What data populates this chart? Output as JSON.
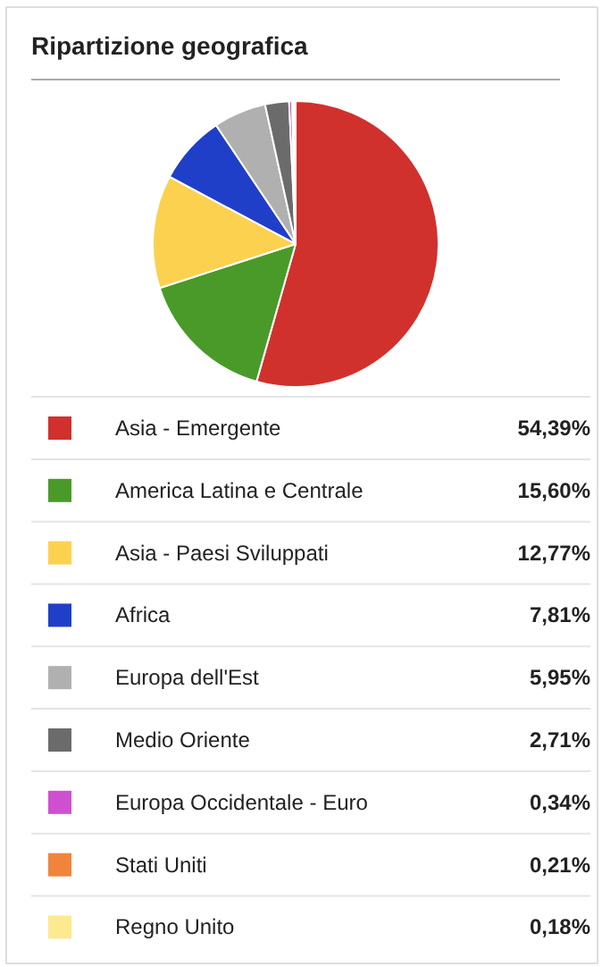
{
  "chart_data": {
    "type": "pie",
    "title": "Ripartizione geografica",
    "categories": [
      "Asia - Emergente",
      "America Latina e Centrale",
      "Asia - Paesi Sviluppati",
      "Africa",
      "Europa dell'Est",
      "Medio Oriente",
      "Europa Occidentale - Euro",
      "Stati Uniti",
      "Regno Unito"
    ],
    "values": [
      54.39,
      15.6,
      12.77,
      7.81,
      5.95,
      2.71,
      0.34,
      0.21,
      0.18
    ],
    "colors": [
      "#d0312d",
      "#4a9a2a",
      "#fcd14f",
      "#1f3fc9",
      "#b0b0b0",
      "#6b6b6b",
      "#d04fd0",
      "#f0843c",
      "#fde98f"
    ],
    "value_labels": [
      "54,39%",
      "15,60%",
      "12,77%",
      "7,81%",
      "5,95%",
      "2,71%",
      "0,34%",
      "0,21%",
      "0,18%"
    ],
    "legend": "bottom"
  }
}
